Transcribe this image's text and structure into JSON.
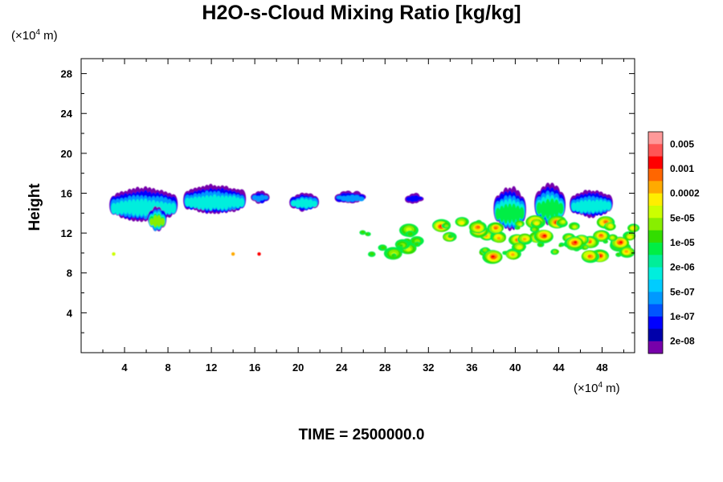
{
  "chart_data": {
    "type": "heatmap",
    "title": "H2O-s-Cloud Mixing Ratio [kg/kg]",
    "xlabel": "",
    "ylabel": "Height",
    "x_unit_prefix": "(×10",
    "x_unit_exp": "4",
    "x_unit_suffix": " m)",
    "y_unit_prefix": "(×10",
    "y_unit_exp": "4",
    "y_unit_suffix": " m)",
    "xlim": [
      0,
      51
    ],
    "ylim": [
      0,
      29.5
    ],
    "x_ticks": [
      4,
      8,
      12,
      16,
      20,
      24,
      28,
      32,
      36,
      40,
      44,
      48
    ],
    "y_ticks": [
      4,
      8,
      12,
      16,
      20,
      24,
      28
    ],
    "colorbar": {
      "labels": [
        "0.005",
        "0.001",
        "0.0002",
        "5e-05",
        "1e-05",
        "2e-06",
        "5e-07",
        "1e-07",
        "2e-08"
      ],
      "colors": [
        "#ff9999",
        "#ff5555",
        "#ff0000",
        "#ff6600",
        "#ffaa00",
        "#ffee00",
        "#ccff00",
        "#88ee00",
        "#33dd00",
        "#00ee44",
        "#00ee99",
        "#00eedd",
        "#00ccff",
        "#0099ff",
        "#0055ff",
        "#0000ff",
        "#0000aa",
        "#7700aa"
      ]
    },
    "cloud_regions": [
      {
        "x_start": 3,
        "x_end": 8.5,
        "y_bottom": 13,
        "y_top": 16.2,
        "max_level": "2e-06"
      },
      {
        "x_start": 6.5,
        "x_end": 7.5,
        "y_bottom": 12,
        "y_top": 14.5,
        "max_level": "5e-05"
      },
      {
        "x_start": 9.8,
        "x_end": 14.8,
        "y_bottom": 13.8,
        "y_top": 16.5,
        "max_level": "2e-06"
      },
      {
        "x_start": 16,
        "x_end": 17,
        "y_bottom": 15,
        "y_top": 16,
        "max_level": "5e-07"
      },
      {
        "x_start": 19.6,
        "x_end": 21.5,
        "y_bottom": 14.2,
        "y_top": 15.8,
        "max_level": "2e-06"
      },
      {
        "x_start": 23.8,
        "x_end": 25.8,
        "y_bottom": 15,
        "y_top": 16,
        "max_level": "5e-07"
      },
      {
        "x_start": 30.2,
        "x_end": 31.2,
        "y_bottom": 15,
        "y_top": 15.8,
        "max_level": "1e-07"
      },
      {
        "x_start": 38.4,
        "x_end": 40.6,
        "y_bottom": 12,
        "y_top": 16.2,
        "max_level": "1e-05"
      },
      {
        "x_start": 42.2,
        "x_end": 44.2,
        "y_bottom": 12.5,
        "y_top": 16.6,
        "max_level": "1e-05"
      },
      {
        "x_start": 45.4,
        "x_end": 48.6,
        "y_bottom": 13.5,
        "y_top": 16,
        "max_level": "2e-06"
      },
      {
        "x_start": 26,
        "x_end": 31,
        "y_bottom": 9.6,
        "y_top": 12.4,
        "max_level": "5e-05"
      },
      {
        "x_start": 33,
        "x_end": 51,
        "y_bottom": 9.5,
        "y_top": 13.2,
        "max_level": "0.001"
      },
      {
        "x_start": 2.8,
        "x_end": 3.2,
        "y_bottom": 9.7,
        "y_top": 10.1,
        "max_level": "5e-05"
      },
      {
        "x_start": 13.8,
        "x_end": 14.2,
        "y_bottom": 9.7,
        "y_top": 10.1,
        "max_level": "0.0002"
      },
      {
        "x_start": 16.2,
        "x_end": 16.6,
        "y_bottom": 9.7,
        "y_top": 10.1,
        "max_level": "0.001"
      }
    ],
    "grid": false,
    "legend": "right colorbar"
  },
  "time_label": "TIME = 2500000.0"
}
